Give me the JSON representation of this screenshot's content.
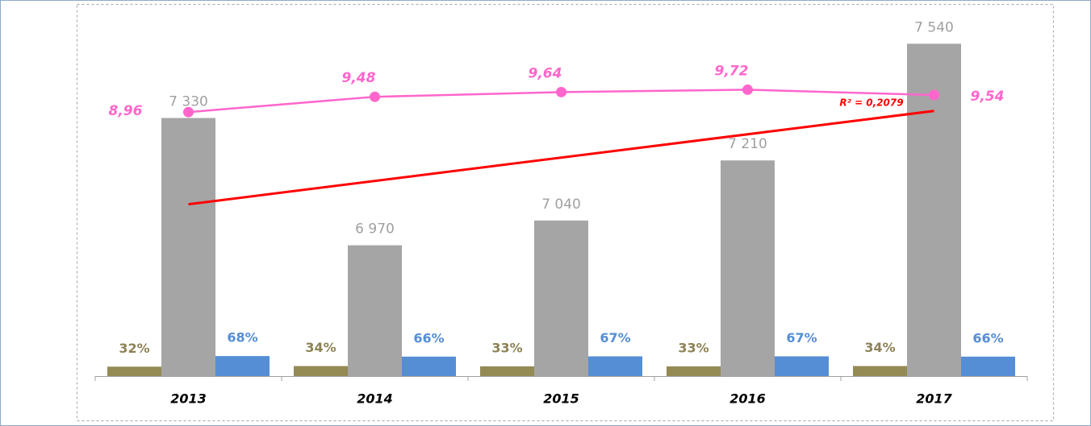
{
  "chart_data": {
    "type": "bar",
    "categories": [
      "2013",
      "2014",
      "2015",
      "2016",
      "2017"
    ],
    "ylim": [
      6600,
      7600
    ],
    "y2lim": [
      0,
      1200
    ],
    "y3lim": [
      0,
      12
    ],
    "series": [
      {
        "type": "bar",
        "axis": "y2",
        "slot": "left",
        "color": "#948a54",
        "label_color": "#8c8255",
        "values": [
          32,
          34,
          33,
          33,
          34
        ],
        "value_labels": [
          "32%",
          "34%",
          "33%",
          "33%",
          "34%"
        ]
      },
      {
        "type": "bar",
        "slot": "center",
        "color": "#a5a5a5",
        "label_color": "#a0a0a0",
        "trendline": true,
        "trend_color": "#ff0000",
        "values": [
          7330,
          6970,
          7040,
          7210,
          7540
        ],
        "value_labels": [
          "7 330",
          "6 970",
          "7 040",
          "7 210",
          "7 540"
        ]
      },
      {
        "type": "bar",
        "axis": "y2",
        "slot": "right",
        "color": "#558ed5",
        "label_color": "#558ed5",
        "values": [
          68,
          66,
          67,
          67,
          66
        ],
        "value_labels": [
          "68%",
          "66%",
          "67%",
          "67%",
          "66%"
        ]
      },
      {
        "type": "line",
        "axis": "y3",
        "color": "#ff66cc",
        "values": [
          8.96,
          9.48,
          9.64,
          9.72,
          9.54
        ],
        "value_labels": [
          "8,96",
          "9,48",
          "9,64",
          "9,72",
          "9,54"
        ]
      }
    ],
    "annotations": [
      {
        "text": "R² = 0,2079",
        "color": "#ff0000"
      }
    ]
  }
}
